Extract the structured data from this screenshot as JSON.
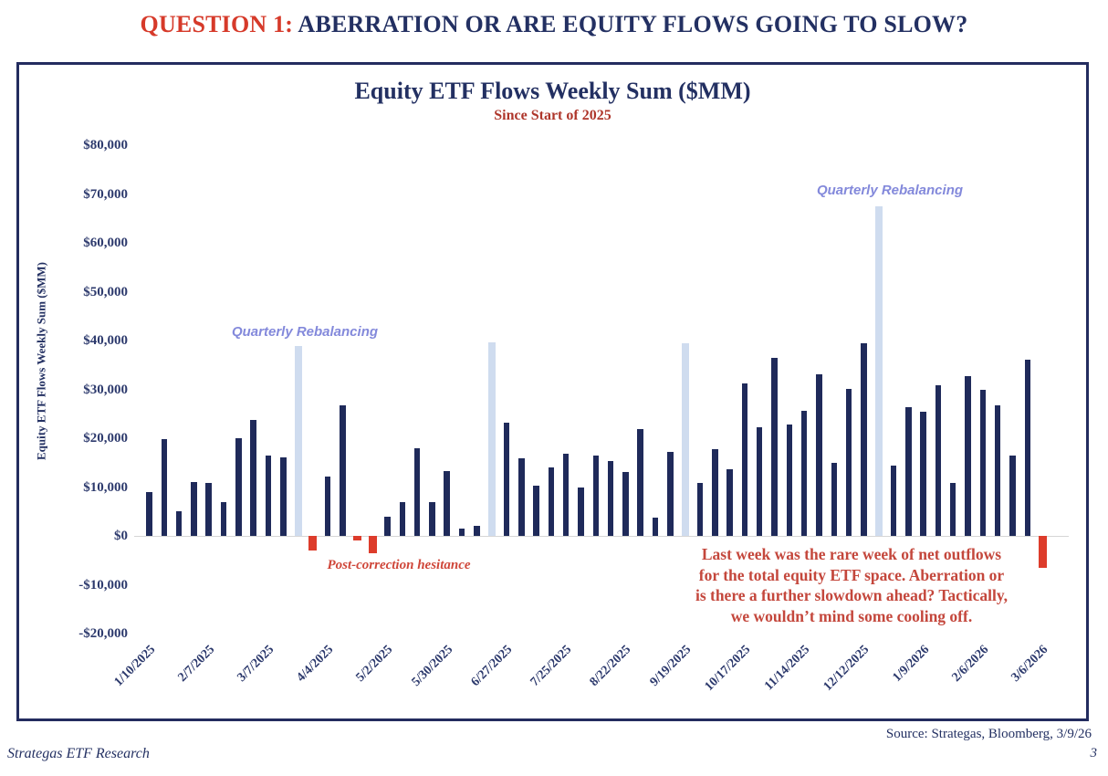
{
  "page": {
    "heading": {
      "prefix": "QUESTION 1:",
      "rest": " ABERRATION OR ARE EQUITY FLOWS GOING TO SLOW?"
    },
    "source": "Source: Strategas, Bloomberg, 3/9/26",
    "footer_left": "Strategas ETF Research",
    "page_number": "3"
  },
  "chart_data": {
    "type": "bar",
    "title": "Equity ETF Flows Weekly Sum ($MM)",
    "subtitle": "Since Start of 2025",
    "ylabel": "Equity ETF Flows Weekly Sum ($MM)",
    "ylim": [
      -20000,
      80000
    ],
    "grid": false,
    "legend": "none",
    "y_ticks": [
      {
        "value": 80000,
        "label": "$80,000"
      },
      {
        "value": 70000,
        "label": "$70,000"
      },
      {
        "value": 60000,
        "label": "$60,000"
      },
      {
        "value": 50000,
        "label": "$50,000"
      },
      {
        "value": 40000,
        "label": "$40,000"
      },
      {
        "value": 30000,
        "label": "$30,000"
      },
      {
        "value": 20000,
        "label": "$20,000"
      },
      {
        "value": 10000,
        "label": "$10,000"
      },
      {
        "value": 0,
        "label": "$0"
      },
      {
        "value": -10000,
        "label": "-$10,000"
      },
      {
        "value": -20000,
        "label": "-$20,000"
      }
    ],
    "x_tick_labels": [
      "1/10/2025",
      "2/7/2025",
      "3/7/2025",
      "4/4/2025",
      "5/2/2025",
      "5/30/2025",
      "6/27/2025",
      "7/25/2025",
      "8/22/2025",
      "9/19/2025",
      "10/17/2025",
      "11/14/2025",
      "12/12/2025",
      "1/9/2026",
      "2/6/2026",
      "3/6/2026"
    ],
    "bars": [
      [
        "1/10/2025",
        9000
      ],
      [
        "1/17/2025",
        19800
      ],
      [
        "1/24/2025",
        5000
      ],
      [
        "1/31/2025",
        11000
      ],
      [
        "2/7/2025",
        10900
      ],
      [
        "2/14/2025",
        7000
      ],
      [
        "2/21/2025",
        20000
      ],
      [
        "2/28/2025",
        23700
      ],
      [
        "3/7/2025",
        16400
      ],
      [
        "3/14/2025",
        16100
      ],
      [
        "3/21/2025",
        38800
      ],
      [
        "3/28/2025",
        -3000
      ],
      [
        "4/4/2025",
        12100
      ],
      [
        "4/11/2025",
        26800
      ],
      [
        "4/18/2025",
        -1000
      ],
      [
        "4/25/2025",
        -3600
      ],
      [
        "5/2/2025",
        3900
      ],
      [
        "5/9/2025",
        7000
      ],
      [
        "5/16/2025",
        18000
      ],
      [
        "5/23/2025",
        7000
      ],
      [
        "5/30/2025",
        13200
      ],
      [
        "6/6/2025",
        1500
      ],
      [
        "6/13/2025",
        2000
      ],
      [
        "6/20/2025",
        39700
      ],
      [
        "6/27/2025",
        23100
      ],
      [
        "7/4/2025",
        15800
      ],
      [
        "7/11/2025",
        10200
      ],
      [
        "7/18/2025",
        14000
      ],
      [
        "7/25/2025",
        16900
      ],
      [
        "8/1/2025",
        9900
      ],
      [
        "8/8/2025",
        16500
      ],
      [
        "8/15/2025",
        15300
      ],
      [
        "8/22/2025",
        13000
      ],
      [
        "8/29/2025",
        21800
      ],
      [
        "9/5/2025",
        3700
      ],
      [
        "9/12/2025",
        17200
      ],
      [
        "9/19/2025",
        39500
      ],
      [
        "9/26/2025",
        10800
      ],
      [
        "10/3/2025",
        17700
      ],
      [
        "10/10/2025",
        13600
      ],
      [
        "10/17/2025",
        31300
      ],
      [
        "10/24/2025",
        22200
      ],
      [
        "10/31/2025",
        36500
      ],
      [
        "11/7/2025",
        22800
      ],
      [
        "11/14/2025",
        25700
      ],
      [
        "11/21/2025",
        33100
      ],
      [
        "11/28/2025",
        15000
      ],
      [
        "12/5/2025",
        30100
      ],
      [
        "12/12/2025",
        39400
      ],
      [
        "12/19/2025",
        67500
      ],
      [
        "12/26/2025",
        14300
      ],
      [
        "1/2/2026",
        26300
      ],
      [
        "1/9/2026",
        25400
      ],
      [
        "1/16/2026",
        30900
      ],
      [
        "1/23/2026",
        10900
      ],
      [
        "1/30/2026",
        32800
      ],
      [
        "2/6/2026",
        29900
      ],
      [
        "2/13/2026",
        26700
      ],
      [
        "2/20/2026",
        16400
      ],
      [
        "2/27/2026",
        36000
      ],
      [
        "3/6/2026",
        -6600
      ]
    ],
    "rebalancing_indices": [
      10,
      23,
      36,
      49
    ],
    "colors": {
      "bar": "#1f2a5a",
      "rebalancing": "#cfdcef",
      "negative": "#dd3c2b",
      "zero_line": "#d6d6d6"
    },
    "annotations": {
      "quarterly_rebalancing_1": "Quarterly Rebalancing",
      "quarterly_rebalancing_2": "Quarterly Rebalancing",
      "post_correction": "Post-correction hesitance",
      "outflow_note_lines": [
        "Last week was the rare week of net outflows",
        "for the total equity ETF space. Aberration or",
        "is there a further slowdown ahead? Tactically,",
        "we wouldn’t mind some cooling off."
      ]
    }
  }
}
